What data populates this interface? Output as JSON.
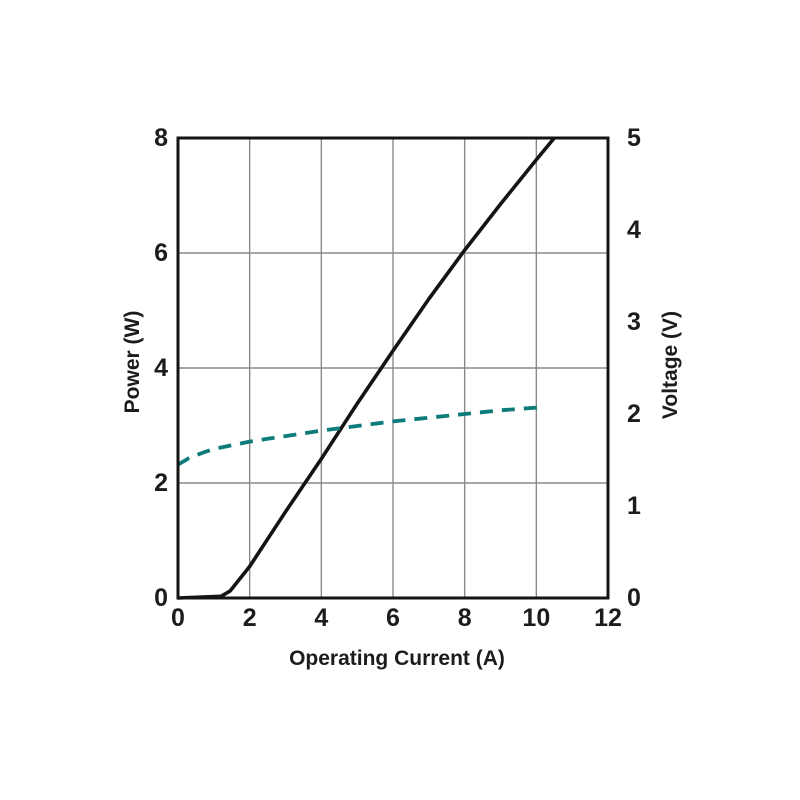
{
  "page": {
    "background_color": "#ffffff",
    "text_color": "#1c1c1c"
  },
  "chart_data": {
    "type": "line",
    "title": "",
    "xlabel": "Operating Current (A)",
    "ylabel_left": "Power (W)",
    "ylabel_right": "Voltage (V)",
    "xlim": [
      0,
      12
    ],
    "ylim_left": [
      0,
      8
    ],
    "ylim_right": [
      0,
      5
    ],
    "x_ticks": [
      0,
      2,
      4,
      6,
      8,
      10,
      12
    ],
    "y_ticks_left": [
      0,
      2,
      4,
      6,
      8
    ],
    "y_ticks_right": [
      0,
      1,
      2,
      3,
      4,
      5
    ],
    "grid": true,
    "grid_color": "#8a8a8a",
    "frame_color": "#141414",
    "legend": "none",
    "series": [
      {
        "name": "Power vs Operating Current",
        "axis": "left",
        "style": "solid",
        "color": "#141414",
        "stroke_width": 3.6,
        "points": [
          [
            0,
            0
          ],
          [
            1.2,
            0.03
          ],
          [
            1.45,
            0.12
          ],
          [
            2,
            0.55
          ],
          [
            3,
            1.5
          ],
          [
            4,
            2.42
          ],
          [
            5,
            3.38
          ],
          [
            6,
            4.3
          ],
          [
            7,
            5.2
          ],
          [
            8,
            6.05
          ],
          [
            9,
            6.85
          ],
          [
            10,
            7.62
          ],
          [
            10.5,
            8.0
          ]
        ]
      },
      {
        "name": "Voltage vs Operating Current",
        "axis": "right",
        "style": "dashed",
        "color": "#0e7b7b",
        "stroke_width": 3.8,
        "points": [
          [
            0,
            1.45
          ],
          [
            0.3,
            1.52
          ],
          [
            0.7,
            1.58
          ],
          [
            1,
            1.62
          ],
          [
            1.5,
            1.66
          ],
          [
            2,
            1.7
          ],
          [
            2.5,
            1.73
          ],
          [
            3,
            1.76
          ],
          [
            4,
            1.82
          ],
          [
            5,
            1.87
          ],
          [
            6,
            1.92
          ],
          [
            7,
            1.96
          ],
          [
            8,
            2.0
          ],
          [
            9,
            2.04
          ],
          [
            10,
            2.07
          ],
          [
            10.2,
            2.08
          ]
        ]
      }
    ]
  }
}
